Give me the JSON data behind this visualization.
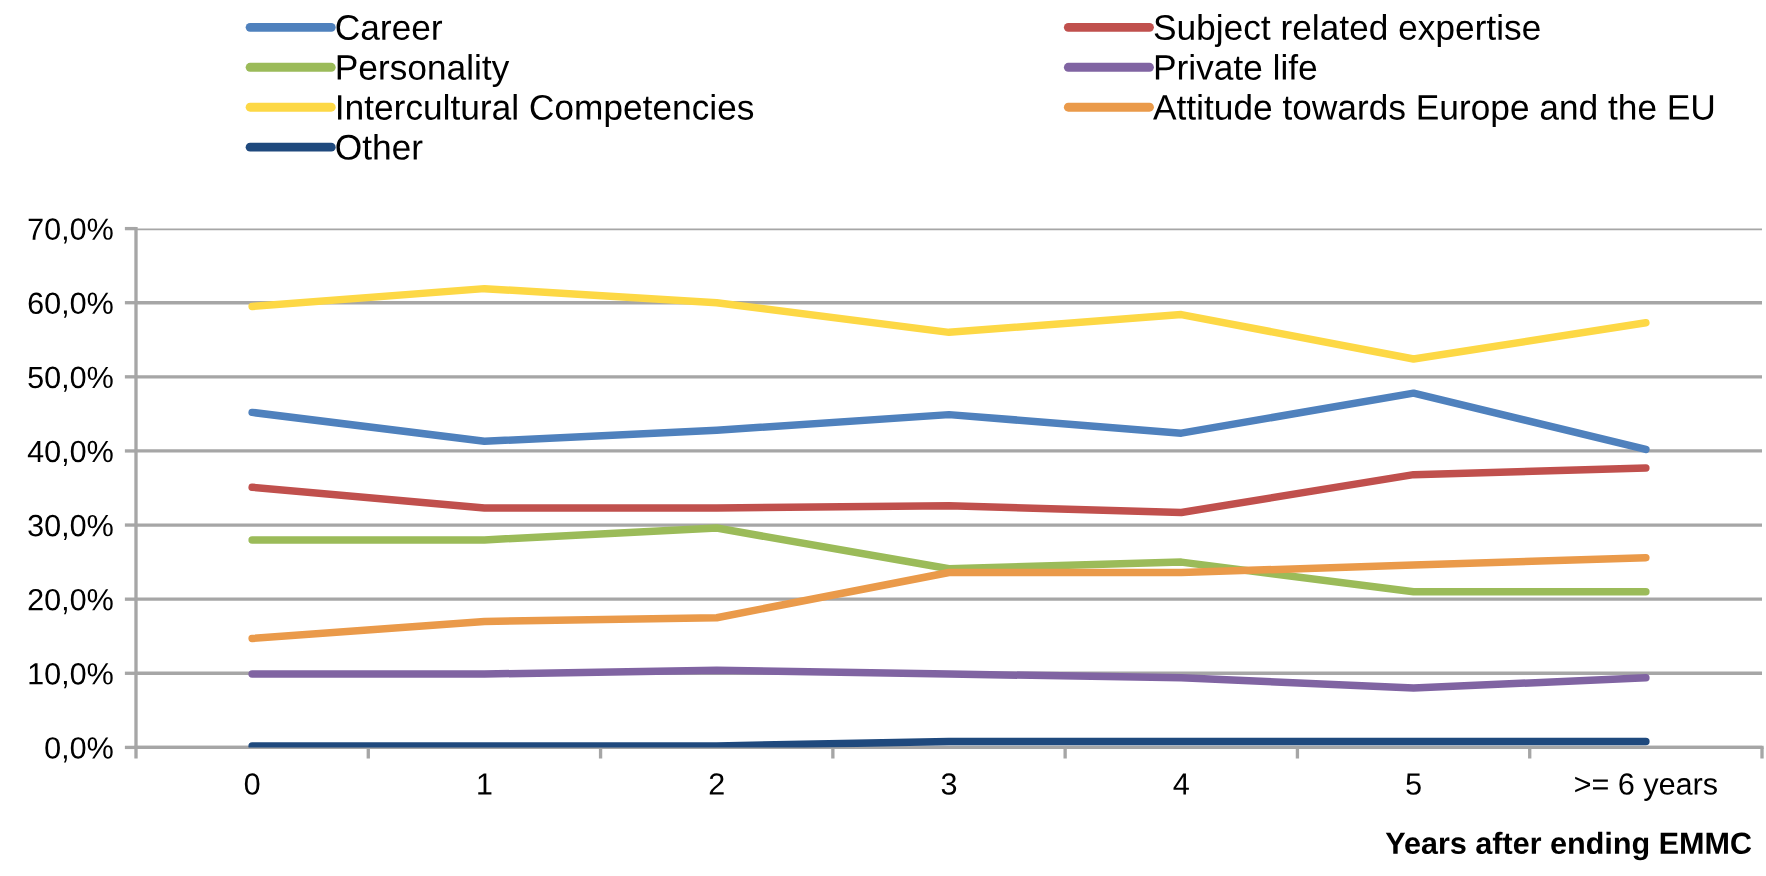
{
  "chart_data": {
    "type": "line",
    "xlabel": "Years after ending EMMC",
    "categories": [
      "0",
      "1",
      "2",
      "3",
      "4",
      "5",
      ">= 6 years"
    ],
    "series": [
      {
        "name": "Career",
        "color": "#4f81bd",
        "values": [
          45.2,
          41.3,
          42.8,
          44.9,
          42.4,
          47.8,
          40.2
        ]
      },
      {
        "name": "Subject related expertise",
        "color": "#c0504d",
        "values": [
          35.1,
          32.3,
          32.3,
          32.6,
          31.7,
          36.8,
          37.7
        ]
      },
      {
        "name": "Personality",
        "color": "#9bbb59",
        "values": [
          28.0,
          28.0,
          29.6,
          24.1,
          25.0,
          21.0,
          21.0
        ]
      },
      {
        "name": "Private life",
        "color": "#8064a2",
        "values": [
          9.9,
          9.9,
          10.4,
          9.9,
          9.4,
          8.0,
          9.4
        ]
      },
      {
        "name": "Intercultural Competencies",
        "color": "#fdd845",
        "values": [
          59.5,
          61.9,
          60.0,
          56.0,
          58.4,
          52.4,
          57.3
        ]
      },
      {
        "name": "Attitude towards Europe and the EU",
        "color": "#ea9a4a",
        "values": [
          14.7,
          17.0,
          17.5,
          23.6,
          23.6,
          24.6,
          25.6
        ]
      },
      {
        "name": "Other",
        "color": "#1f497d",
        "values": [
          0.2,
          0.2,
          0.2,
          0.8,
          0.8,
          0.8,
          0.8
        ]
      }
    ],
    "ylim": [
      0,
      70
    ],
    "yticks": [
      {
        "value": 0,
        "label": "0,0%"
      },
      {
        "value": 10,
        "label": "10,0%"
      },
      {
        "value": 20,
        "label": "20,0%"
      },
      {
        "value": 30,
        "label": "30,0%"
      },
      {
        "value": 40,
        "label": "40,0%"
      },
      {
        "value": 50,
        "label": "50,0%"
      },
      {
        "value": 60,
        "label": "60,0%"
      },
      {
        "value": 70,
        "label": "70,0%"
      }
    ],
    "grid": "y",
    "legend": "top",
    "line_style": "solid"
  }
}
